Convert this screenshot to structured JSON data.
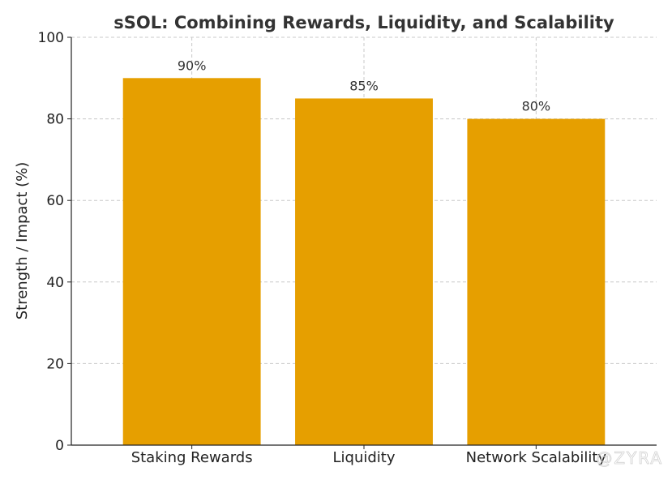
{
  "chart_data": {
    "type": "bar",
    "title": "sSOL: Combining Rewards, Liquidity, and Scalability",
    "xlabel": "",
    "ylabel": "Strength / Impact (%)",
    "categories": [
      "Staking Rewards",
      "Liquidity",
      "Network Scalability"
    ],
    "values": [
      90,
      85,
      80
    ],
    "value_labels": [
      "90%",
      "85%",
      "80%"
    ],
    "ylim": [
      0,
      100
    ],
    "yticks": [
      0,
      20,
      40,
      60,
      80,
      100
    ],
    "grid": true,
    "bar_color": "#E69F00"
  },
  "watermark": "@ZYRA"
}
